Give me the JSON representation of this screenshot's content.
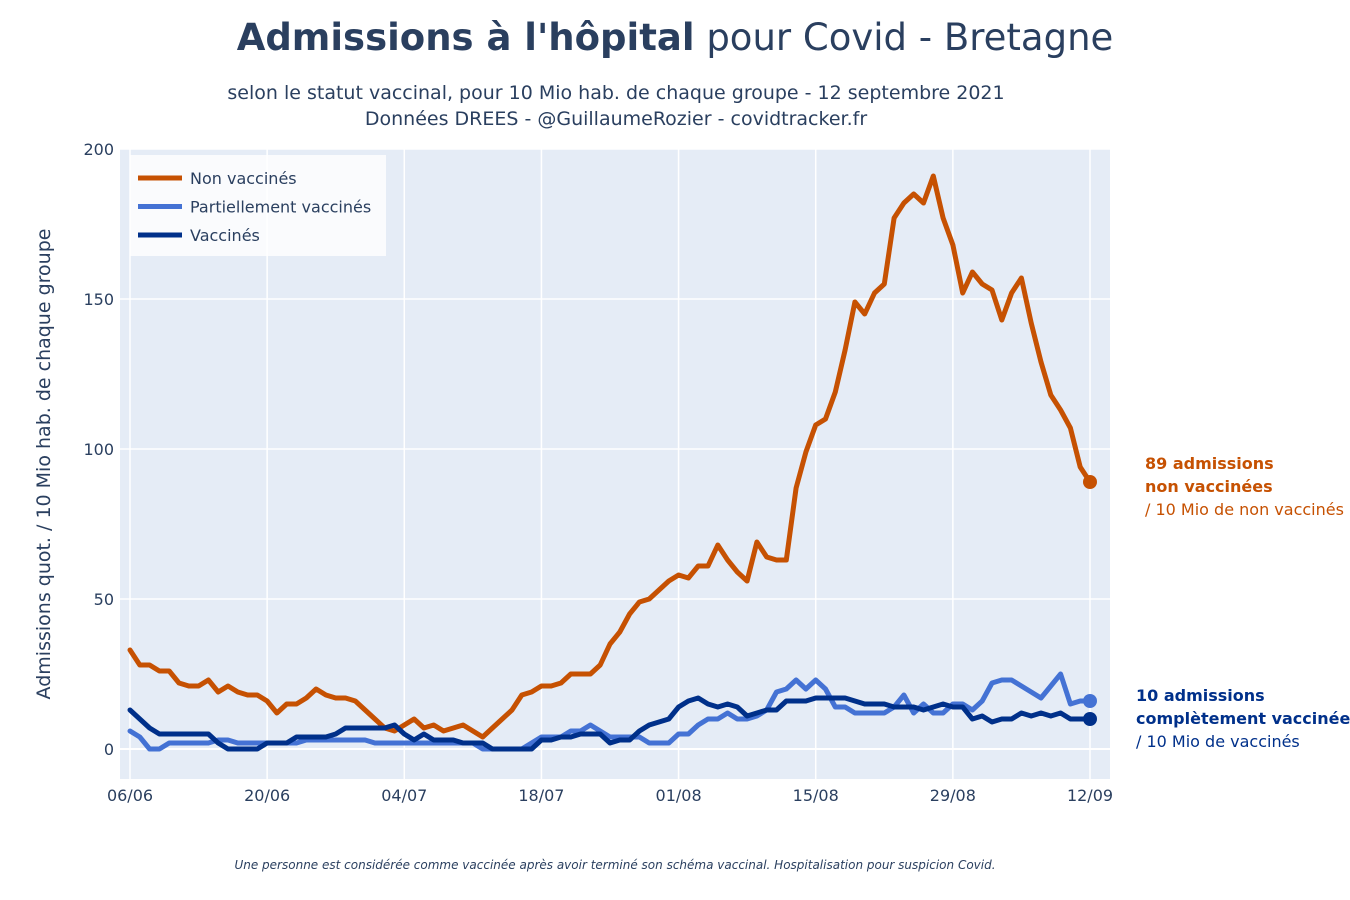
{
  "title_bold": "Admissions à l'hôpital",
  "title_rest": " pour Covid - Bretagne",
  "subtitle_line1": "selon le statut vaccinal, pour 10 Mio hab. de chaque groupe - 12 septembre 2021",
  "subtitle_line2": "Données DREES - @GuillaumeRozier - covidtracker.fr",
  "footnote": "Une personne est considérée comme vaccinée après avoir terminé son schéma vaccinal. Hospitalisation pour suspicion Covid.",
  "annotations": {
    "non_vaccinated": {
      "line1": "89 admissions",
      "line2": "non vaccinées",
      "line3": "/ 10 Mio de non vaccinés",
      "color": "#c65102"
    },
    "vaccinated": {
      "line1": "10 admissions",
      "line2": "complètement vaccinée",
      "line3": "/ 10 Mio de vaccinés",
      "color": "#00308a"
    }
  },
  "chart_data": {
    "type": "line",
    "ylabel": "Admissions quot. / 10 Mio hab. de chaque groupe",
    "xlabel": "",
    "ylim": [
      -10,
      200
    ],
    "yticks": [
      0,
      50,
      100,
      150,
      200
    ],
    "x_tick_labels": [
      "06/06",
      "20/06",
      "04/07",
      "18/07",
      "01/08",
      "15/08",
      "29/08",
      "12/09"
    ],
    "x_range_days": [
      0,
      98
    ],
    "legend_position": "top-left",
    "grid": true,
    "series": [
      {
        "name": "Non vaccinés",
        "color": "#c65102",
        "x": [
          0,
          1,
          2,
          3,
          4,
          5,
          6,
          7,
          8,
          9,
          10,
          11,
          12,
          13,
          14,
          15,
          16,
          17,
          18,
          19,
          20,
          21,
          22,
          23,
          24,
          25,
          26,
          27,
          28,
          29,
          30,
          31,
          32,
          33,
          34,
          35,
          36,
          37,
          38,
          39,
          40,
          41,
          42,
          43,
          44,
          45,
          46,
          47,
          48,
          49,
          50,
          51,
          52,
          53,
          54,
          55,
          56,
          57,
          58,
          59,
          60,
          61,
          62,
          63,
          64,
          65,
          66,
          67,
          68,
          69,
          70,
          71,
          72,
          73,
          74,
          75,
          76,
          77,
          78,
          79,
          80,
          81,
          82,
          83,
          84,
          85,
          86,
          87,
          88,
          89,
          90,
          91,
          92,
          93,
          94,
          95,
          96,
          97,
          98
        ],
        "y": [
          33,
          28,
          28,
          26,
          26,
          22,
          21,
          21,
          23,
          19,
          21,
          19,
          18,
          18,
          16,
          12,
          15,
          15,
          17,
          20,
          18,
          17,
          17,
          16,
          13,
          10,
          7,
          6,
          8,
          10,
          7,
          8,
          6,
          7,
          8,
          6,
          4,
          7,
          10,
          13,
          18,
          19,
          21,
          21,
          22,
          25,
          25,
          25,
          28,
          35,
          39,
          45,
          49,
          50,
          53,
          56,
          58,
          57,
          61,
          61,
          68,
          63,
          59,
          56,
          69,
          64,
          63,
          63,
          87,
          99,
          108,
          110,
          119,
          133,
          149,
          145,
          152,
          155,
          177,
          182,
          185,
          182,
          191,
          177,
          168,
          152,
          159,
          155,
          153,
          143,
          152,
          157,
          142,
          129,
          118,
          113,
          107,
          94,
          89
        ]
      },
      {
        "name": "Partiellement vaccinés",
        "color": "#4472d4",
        "x": [
          0,
          1,
          2,
          3,
          4,
          5,
          6,
          7,
          8,
          9,
          10,
          11,
          12,
          13,
          14,
          15,
          16,
          17,
          18,
          19,
          20,
          21,
          22,
          23,
          24,
          25,
          26,
          27,
          28,
          29,
          30,
          31,
          32,
          33,
          34,
          35,
          36,
          37,
          38,
          39,
          40,
          41,
          42,
          43,
          44,
          45,
          46,
          47,
          48,
          49,
          50,
          51,
          52,
          53,
          54,
          55,
          56,
          57,
          58,
          59,
          60,
          61,
          62,
          63,
          64,
          65,
          66,
          67,
          68,
          69,
          70,
          71,
          72,
          73,
          74,
          75,
          76,
          77,
          78,
          79,
          80,
          81,
          82,
          83,
          84,
          85,
          86,
          87,
          88,
          89,
          90,
          91,
          92,
          93,
          94,
          95,
          96,
          97,
          98
        ],
        "y": [
          6,
          4,
          0,
          0,
          2,
          2,
          2,
          2,
          2,
          3,
          3,
          2,
          2,
          2,
          2,
          2,
          2,
          2,
          3,
          3,
          3,
          3,
          3,
          3,
          3,
          2,
          2,
          2,
          2,
          2,
          2,
          2,
          2,
          2,
          2,
          2,
          0,
          0,
          0,
          0,
          0,
          2,
          4,
          4,
          4,
          6,
          6,
          8,
          6,
          4,
          4,
          4,
          4,
          2,
          2,
          2,
          5,
          5,
          8,
          10,
          10,
          12,
          10,
          10,
          11,
          13,
          19,
          20,
          23,
          20,
          23,
          20,
          14,
          14,
          12,
          12,
          12,
          12,
          14,
          18,
          12,
          15,
          12,
          12,
          15,
          15,
          13,
          16,
          22,
          23,
          23,
          21,
          19,
          17,
          21,
          25,
          15,
          16,
          16
        ]
      },
      {
        "name": "Vaccinés",
        "color": "#00308a",
        "x": [
          0,
          1,
          2,
          3,
          4,
          5,
          6,
          7,
          8,
          9,
          10,
          11,
          12,
          13,
          14,
          15,
          16,
          17,
          18,
          19,
          20,
          21,
          22,
          23,
          24,
          25,
          26,
          27,
          28,
          29,
          30,
          31,
          32,
          33,
          34,
          35,
          36,
          37,
          38,
          39,
          40,
          41,
          42,
          43,
          44,
          45,
          46,
          47,
          48,
          49,
          50,
          51,
          52,
          53,
          54,
          55,
          56,
          57,
          58,
          59,
          60,
          61,
          62,
          63,
          64,
          65,
          66,
          67,
          68,
          69,
          70,
          71,
          72,
          73,
          74,
          75,
          76,
          77,
          78,
          79,
          80,
          81,
          82,
          83,
          84,
          85,
          86,
          87,
          88,
          89,
          90,
          91,
          92,
          93,
          94,
          95,
          96,
          97,
          98
        ],
        "y": [
          13,
          10,
          7,
          5,
          5,
          5,
          5,
          5,
          5,
          2,
          0,
          0,
          0,
          0,
          2,
          2,
          2,
          4,
          4,
          4,
          4,
          5,
          7,
          7,
          7,
          7,
          7,
          8,
          5,
          3,
          5,
          3,
          3,
          3,
          2,
          2,
          2,
          0,
          0,
          0,
          0,
          0,
          3,
          3,
          4,
          4,
          5,
          5,
          5,
          2,
          3,
          3,
          6,
          8,
          9,
          10,
          14,
          16,
          17,
          15,
          14,
          15,
          14,
          11,
          12,
          13,
          13,
          16,
          16,
          16,
          17,
          17,
          17,
          17,
          16,
          15,
          15,
          15,
          14,
          14,
          14,
          13,
          14,
          15,
          14,
          14,
          10,
          11,
          9,
          10,
          10,
          12,
          11,
          12,
          11,
          12,
          10,
          10,
          10
        ]
      }
    ]
  }
}
